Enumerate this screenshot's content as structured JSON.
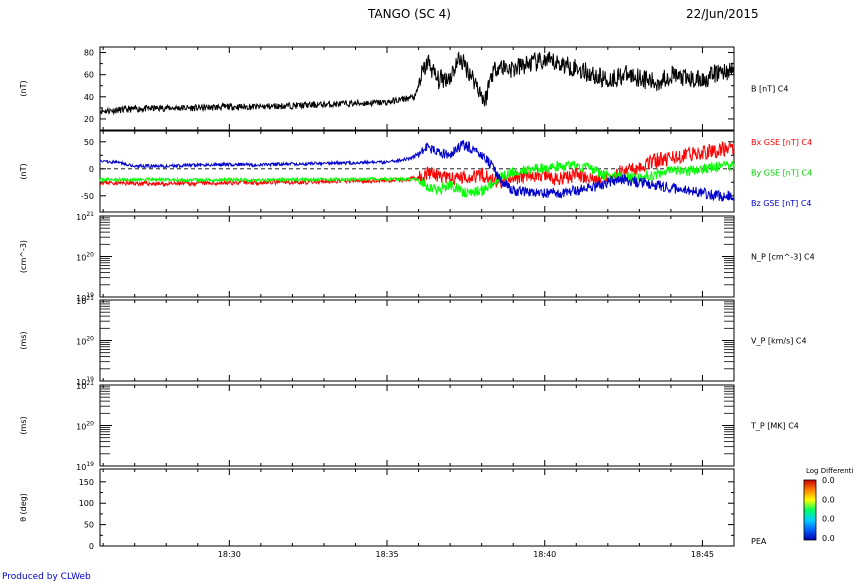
{
  "header": {
    "title": "TANGO (SC 4)",
    "date": "22/Jun/2015"
  },
  "footer": {
    "credit": "Produced by CLWeb"
  },
  "time_axis": {
    "start_min": 25.9,
    "end_min": 46.0,
    "tick_labels": [
      {
        "t": 30,
        "label": "18:30"
      },
      {
        "t": 35,
        "label": "18:35"
      },
      {
        "t": 40,
        "label": "18:40"
      },
      {
        "t": 45,
        "label": "18:45"
      }
    ]
  },
  "chart_data": [
    {
      "type": "line",
      "ylabel": "(nT)",
      "right_labels": [
        {
          "text": "B [nT] C4",
          "color": "#000000"
        }
      ],
      "ylim": [
        10,
        85
      ],
      "yticks": [
        20,
        40,
        60,
        80
      ],
      "series": [
        {
          "color": "#000000",
          "x": [
            25.9,
            27,
            28,
            29,
            30,
            31,
            32,
            33,
            34,
            35,
            35.9,
            36.1,
            36.3,
            36.6,
            37.0,
            37.3,
            37.6,
            37.9,
            38.1,
            38.3,
            38.5,
            39,
            39.5,
            40,
            40.5,
            41,
            41.5,
            42,
            42.5,
            43,
            43.5,
            44,
            44.5,
            45,
            45.5,
            46.0
          ],
          "y": [
            27,
            29,
            30,
            30,
            31,
            31,
            32,
            33,
            34,
            35,
            40,
            60,
            72,
            55,
            58,
            75,
            63,
            48,
            35,
            60,
            68,
            65,
            70,
            72,
            70,
            66,
            60,
            55,
            60,
            58,
            52,
            60,
            56,
            55,
            62,
            64
          ],
          "noise": 3,
          "noise_after": 36.0,
          "noise_big": 9,
          "seed": 11
        }
      ]
    },
    {
      "type": "line",
      "ylabel": "(nT)",
      "right_labels": [
        {
          "text": "Bx GSE [nT] C4",
          "color": "#ff0000"
        },
        {
          "text": "By GSE [nT] C4",
          "color": "#00cc00"
        },
        {
          "text": "Bz GSE [nT] C4",
          "color": "#0000cc"
        }
      ],
      "ylim": [
        -80,
        70
      ],
      "yticks": [
        -50,
        0,
        50
      ],
      "zero_line": true,
      "series": [
        {
          "name": "Bx GSE [nT] C4",
          "color": "#ff0000",
          "x": [
            25.9,
            27,
            28,
            29,
            30,
            31,
            32,
            33,
            34,
            35,
            36.0,
            36.3,
            36.6,
            37,
            37.5,
            38,
            38.5,
            39,
            39.5,
            40,
            40.5,
            41,
            41.5,
            42,
            42.5,
            43,
            43.5,
            44,
            44.5,
            45,
            45.5,
            46.0
          ],
          "y": [
            -25,
            -27,
            -28,
            -27,
            -26,
            -25,
            -25,
            -24,
            -22,
            -22,
            -18,
            -5,
            -15,
            -20,
            -15,
            -10,
            -25,
            -20,
            -10,
            -15,
            -20,
            -10,
            -20,
            -15,
            -5,
            5,
            15,
            20,
            25,
            30,
            35,
            40
          ],
          "noise": 4,
          "noise_after": 36.0,
          "noise_big": 14,
          "seed": 23
        },
        {
          "name": "By GSE [nT] C4",
          "color": "#00ff00",
          "x": [
            25.9,
            27,
            28,
            29,
            30,
            31,
            32,
            33,
            34,
            35,
            36.0,
            36.3,
            36.6,
            37,
            37.5,
            38,
            38.5,
            39,
            39.5,
            40,
            40.5,
            41,
            41.5,
            42,
            42.5,
            43,
            43.5,
            44,
            44.5,
            45,
            45.5,
            46.0
          ],
          "y": [
            -20,
            -20,
            -20,
            -21,
            -20,
            -21,
            -20,
            -20,
            -19,
            -19,
            -20,
            -35,
            -40,
            -30,
            -45,
            -40,
            -20,
            -5,
            0,
            0,
            5,
            5,
            0,
            -15,
            -15,
            -15,
            -10,
            -5,
            -5,
            0,
            5,
            5
          ],
          "noise": 3,
          "noise_after": 36.0,
          "noise_big": 10,
          "seed": 37
        },
        {
          "name": "Bz GSE [nT] C4",
          "color": "#0000cc",
          "x": [
            25.9,
            26.5,
            27,
            28,
            29,
            30,
            31,
            32,
            33,
            34,
            35,
            35.8,
            36.2,
            36.6,
            37.0,
            37.4,
            37.8,
            38.2,
            38.6,
            39,
            39.5,
            40,
            40.5,
            41,
            41.5,
            42,
            42.5,
            43,
            43.5,
            44,
            44.5,
            45,
            45.5,
            46.0
          ],
          "y": [
            15,
            12,
            5,
            5,
            7,
            8,
            7,
            9,
            10,
            11,
            12,
            20,
            40,
            30,
            25,
            45,
            35,
            15,
            -20,
            -40,
            -45,
            -45,
            -45,
            -40,
            -35,
            -25,
            -20,
            -25,
            -30,
            -35,
            -40,
            -45,
            -50,
            -50
          ],
          "noise": 3,
          "noise_after": 36.0,
          "noise_big": 10,
          "seed": 51
        }
      ]
    },
    {
      "type": "line",
      "ylabel": "(cm^-3)",
      "right_labels": [
        {
          "text": "N_P [cm^-3] C4",
          "color": "#000000"
        }
      ],
      "log": true,
      "ylim": [
        19,
        21
      ],
      "yticks": [
        19,
        20,
        21
      ],
      "series": []
    },
    {
      "type": "line",
      "ylabel": "(ms)",
      "right_labels": [
        {
          "text": "V_P [km/s] C4",
          "color": "#000000"
        }
      ],
      "log": true,
      "ylim": [
        19,
        21
      ],
      "yticks": [
        19,
        20,
        21
      ],
      "series": []
    },
    {
      "type": "line",
      "ylabel": "(ms)",
      "right_labels": [
        {
          "text": "T_P [MK] C4",
          "color": "#000000"
        }
      ],
      "log": true,
      "ylim": [
        19,
        21
      ],
      "yticks": [
        19,
        20,
        21
      ],
      "series": []
    },
    {
      "type": "heatmap",
      "ylabel": "θ (deg)",
      "right_labels": [
        {
          "text": "PEA",
          "color": "#000000"
        }
      ],
      "ylim": [
        0,
        180
      ],
      "yticks": [
        0,
        50,
        100,
        150
      ],
      "colorbar": {
        "title": "Log Differenti",
        "labels": [
          "0.0",
          "0.0",
          "0.0",
          "0.0"
        ],
        "colors": [
          "#0000aa",
          "#0060ff",
          "#00d0ff",
          "#00ff60",
          "#ffff00",
          "#ff8000",
          "#cc0000"
        ]
      },
      "series": []
    }
  ]
}
